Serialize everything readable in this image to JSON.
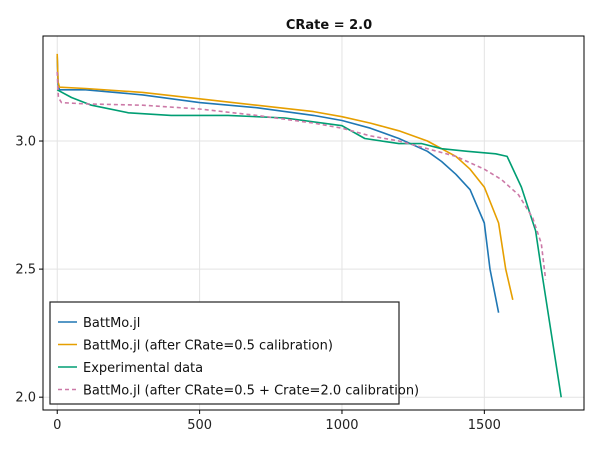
{
  "chart_data": {
    "type": "line",
    "title": "CRate = 2.0",
    "xlabel": "",
    "ylabel": "",
    "xlim": [
      -50,
      1850
    ],
    "ylim": [
      1.95,
      3.41
    ],
    "x_ticks": [
      0,
      500,
      1000,
      1500
    ],
    "y_ticks": [
      2.0,
      2.5,
      3.0
    ],
    "x_tick_labels": [
      "0",
      "500",
      "1000",
      "1500"
    ],
    "y_tick_labels": [
      "2.0",
      "2.5",
      "3.0"
    ],
    "grid": true,
    "legend_position": "bottom-left",
    "series": [
      {
        "name": "BattMo.jl",
        "color": "#1f77b4",
        "dash": "solid",
        "x": [
          0,
          3,
          8,
          100,
          300,
          500,
          700,
          900,
          1000,
          1100,
          1200,
          1300,
          1350,
          1400,
          1450,
          1500,
          1520,
          1550
        ],
        "y": [
          3.33,
          3.22,
          3.2,
          3.2,
          3.18,
          3.15,
          3.13,
          3.1,
          3.08,
          3.05,
          3.01,
          2.96,
          2.92,
          2.87,
          2.81,
          2.68,
          2.5,
          2.33
        ]
      },
      {
        "name": "BattMo.jl (after CRate=0.5 calibration)",
        "color": "#e69f00",
        "dash": "solid",
        "x": [
          0,
          3,
          8,
          100,
          300,
          500,
          700,
          900,
          1000,
          1100,
          1200,
          1300,
          1400,
          1450,
          1500,
          1550,
          1575,
          1600
        ],
        "y": [
          3.34,
          3.23,
          3.21,
          3.205,
          3.19,
          3.165,
          3.14,
          3.115,
          3.095,
          3.07,
          3.04,
          3.0,
          2.94,
          2.89,
          2.82,
          2.68,
          2.5,
          2.38
        ]
      },
      {
        "name": "Experimental data",
        "color": "#009e73",
        "dash": "solid",
        "x": [
          0,
          50,
          120,
          250,
          400,
          600,
          800,
          1000,
          1080,
          1200,
          1280,
          1350,
          1440,
          1540,
          1580,
          1630,
          1680,
          1700,
          1770
        ],
        "y": [
          3.2,
          3.17,
          3.14,
          3.11,
          3.1,
          3.1,
          3.09,
          3.06,
          3.01,
          2.99,
          2.99,
          2.97,
          2.96,
          2.95,
          2.94,
          2.82,
          2.65,
          2.5,
          2.0
        ]
      },
      {
        "name": "BattMo.jl (after CRate=0.5 + Crate=2.0 calibration)",
        "color": "#cc79a7",
        "dash": "dashed",
        "x": [
          0,
          4,
          15,
          100,
          300,
          500,
          700,
          900,
          1000,
          1100,
          1200,
          1300,
          1400,
          1500,
          1560,
          1620,
          1670,
          1700,
          1715
        ],
        "y": [
          3.27,
          3.17,
          3.15,
          3.145,
          3.14,
          3.125,
          3.1,
          3.07,
          3.05,
          3.02,
          3.0,
          2.97,
          2.94,
          2.89,
          2.85,
          2.79,
          2.7,
          2.6,
          2.46
        ]
      }
    ]
  }
}
